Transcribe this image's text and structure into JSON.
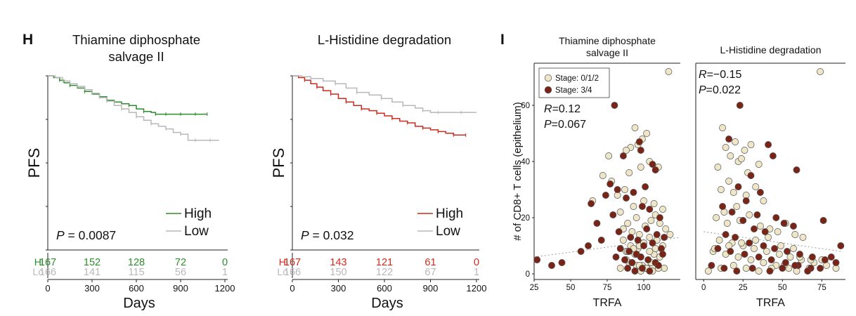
{
  "figure": {
    "panel_h_letter": "H",
    "panel_i_letter": "I"
  },
  "colors": {
    "high_green": "#2e8b2e",
    "high_red": "#cc2a1c",
    "low_gray": "#b8b8b8",
    "stage_low_fill": "#efe6c8",
    "stage_high_fill": "#7a2418",
    "strip_bg": "#ffffff",
    "axis": "#222222"
  },
  "chart_data": [
    {
      "id": "km-thiamine",
      "type": "line",
      "title": "Thiamine diphosphate salvage II",
      "title_lines": [
        "Thiamine diphosphate",
        "salvage II"
      ],
      "xlabel": "Days",
      "ylabel": "PFS",
      "xlim": [
        0,
        1200
      ],
      "ylim": [
        0,
        1
      ],
      "x_ticks": [
        "0",
        "300",
        "600",
        "900",
        "1200"
      ],
      "x_tick_values": [
        0,
        300,
        600,
        900,
        1200
      ],
      "p_label": "P",
      "p_value": " = 0.0087",
      "legend": [
        {
          "name": "High",
          "color": "#2e8b2e"
        },
        {
          "name": "Low",
          "color": "#b8b8b8"
        }
      ],
      "series": [
        {
          "name": "High",
          "color": "#2e8b2e",
          "end_x": 1080,
          "x": [
            0,
            40,
            80,
            110,
            150,
            200,
            250,
            300,
            350,
            400,
            450,
            500,
            550,
            600,
            650,
            700,
            730,
            760,
            800,
            850,
            900,
            950,
            1000,
            1050,
            1080
          ],
          "y": [
            1,
            0.99,
            0.975,
            0.96,
            0.945,
            0.93,
            0.91,
            0.895,
            0.88,
            0.86,
            0.85,
            0.84,
            0.83,
            0.81,
            0.795,
            0.79,
            0.78,
            0.78,
            0.78,
            0.78,
            0.78,
            0.78,
            0.78,
            0.78,
            0.78
          ]
        },
        {
          "name": "Low",
          "color": "#b8b8b8",
          "end_x": 1160,
          "x": [
            0,
            50,
            100,
            150,
            200,
            250,
            300,
            350,
            400,
            450,
            500,
            550,
            600,
            650,
            700,
            750,
            800,
            850,
            900,
            950,
            1000,
            1050,
            1100,
            1160
          ],
          "y": [
            1,
            0.99,
            0.97,
            0.955,
            0.94,
            0.92,
            0.9,
            0.875,
            0.855,
            0.83,
            0.81,
            0.79,
            0.765,
            0.745,
            0.725,
            0.71,
            0.695,
            0.675,
            0.665,
            0.63,
            0.63,
            0.63,
            0.63,
            0.63
          ]
        }
      ],
      "risk_table": {
        "rows": [
          {
            "label": "Hi",
            "color": "#2e8b2e",
            "values": [
              "167",
              "152",
              "128",
              "72",
              "0"
            ]
          },
          {
            "label": "Lo",
            "color": "#b8b8b8",
            "values": [
              "166",
              "141",
              "115",
              "56",
              "1"
            ]
          }
        ]
      }
    },
    {
      "id": "km-histidine",
      "type": "line",
      "title": "L-Histidine degradation",
      "title_lines": [
        "L-Histidine degradation"
      ],
      "xlabel": "Days",
      "ylabel": "PFS",
      "xlim": [
        0,
        1200
      ],
      "ylim": [
        0,
        1
      ],
      "x_ticks": [
        "0",
        "300",
        "600",
        "900",
        "1200"
      ],
      "x_tick_values": [
        0,
        300,
        600,
        900,
        1200
      ],
      "p_label": "P",
      "p_value": " = 0.032",
      "legend": [
        {
          "name": "High",
          "color": "#cc2a1c"
        },
        {
          "name": "Low",
          "color": "#b8b8b8"
        }
      ],
      "series": [
        {
          "name": "High",
          "color": "#cc2a1c",
          "end_x": 1130,
          "x": [
            0,
            40,
            80,
            120,
            160,
            200,
            250,
            300,
            350,
            400,
            450,
            500,
            550,
            600,
            650,
            700,
            750,
            800,
            850,
            900,
            950,
            1000,
            1050,
            1100,
            1130
          ],
          "y": [
            1,
            0.99,
            0.975,
            0.955,
            0.935,
            0.915,
            0.895,
            0.87,
            0.85,
            0.83,
            0.81,
            0.8,
            0.785,
            0.77,
            0.755,
            0.74,
            0.73,
            0.71,
            0.7,
            0.69,
            0.68,
            0.67,
            0.66,
            0.66,
            0.66
          ]
        },
        {
          "name": "Low",
          "color": "#b8b8b8",
          "end_x": 1200,
          "x": [
            0,
            60,
            120,
            200,
            280,
            350,
            420,
            500,
            580,
            650,
            720,
            800,
            850,
            900,
            950,
            1000,
            1100,
            1200
          ],
          "y": [
            1,
            0.995,
            0.985,
            0.97,
            0.955,
            0.93,
            0.905,
            0.89,
            0.87,
            0.85,
            0.83,
            0.815,
            0.8,
            0.79,
            0.79,
            0.79,
            0.79,
            0.79
          ]
        }
      ],
      "risk_table": {
        "rows": [
          {
            "label": "Hi",
            "color": "#cc2a1c",
            "values": [
              "167",
              "143",
              "121",
              "61",
              "0"
            ]
          },
          {
            "label": "Lo",
            "color": "#b8b8b8",
            "values": [
              "166",
              "150",
              "122",
              "67",
              "1"
            ]
          }
        ]
      }
    },
    {
      "id": "scatter-trfa",
      "type": "scatter",
      "ylabel": "# of CD8+ T cells (epithelium)",
      "ylim": [
        -2,
        75
      ],
      "y_ticks": [
        "0",
        "20",
        "40",
        "60"
      ],
      "y_tick_values": [
        0,
        20,
        40,
        60
      ],
      "legend": [
        {
          "name": "Stage: 0/1/2",
          "fill": "#efe6c8"
        },
        {
          "name": "Stage: 3/4",
          "fill": "#7a2418"
        }
      ],
      "facets": [
        {
          "strip": [
            "Thiamine diphosphate",
            "salvage II"
          ],
          "xlabel": "TRFA",
          "xlim": [
            25,
            125
          ],
          "x_ticks": [
            "25",
            "50",
            "75",
            "100"
          ],
          "x_tick_values": [
            25,
            50,
            75,
            100
          ],
          "stat_lines": [
            {
              "label": "R",
              "value": "=0.12"
            },
            {
              "label": "P",
              "value": "=0.067"
            }
          ],
          "trend": {
            "x": [
              25,
              125
            ],
            "y": [
              6,
              13
            ]
          },
          "points_low": {
            "x": [
              117,
              94,
              99,
              91,
              96,
              102,
              88,
              76,
              87,
              82,
              90,
              98,
              104,
              110,
              84,
              93,
              100,
              107,
              113,
              95,
              89,
              86,
              92,
              97,
              101,
              105,
              108,
              111,
              115,
              118,
              86,
              91,
              96,
              100,
              104,
              109,
              113,
              88,
              94,
              98,
              103,
              107,
              111,
              65,
              78,
              72,
              90,
              95,
              99,
              103,
              106,
              110,
              114,
              84,
              88,
              92,
              97,
              101,
              105,
              94,
              98,
              102,
              106,
              110,
              89,
              93,
              97,
              100,
              104,
              108
            ],
            "y": [
              72,
              52,
              48,
              45,
              46,
              50,
              44,
              42,
              30,
              28,
              36,
              38,
              40,
              38,
              22,
              24,
              26,
              25,
              23,
              20,
              18,
              16,
              15,
              14,
              17,
              19,
              21,
              18,
              16,
              14,
              12,
              10,
              9,
              11,
              13,
              12,
              10,
              8,
              7,
              6,
              5,
              7,
              6,
              26,
              33,
              35,
              4,
              3,
              3,
              2,
              2,
              3,
              2,
              2,
              5,
              4,
              3,
              2,
              4,
              1,
              1,
              2,
              1,
              2,
              8,
              9,
              10,
              11,
              8,
              9
            ]
          },
          "points_high": {
            "x": [
              80,
              97,
              98,
              86,
              106,
              108,
              77,
              82,
              74,
              64,
              93,
              101,
              88,
              99,
              104,
              111,
              79,
              68,
              57,
              44,
              27,
              37,
              83,
              91,
              96,
              102,
              109,
              114,
              84,
              90,
              95,
              100,
              106,
              112,
              81,
              87,
              92,
              98,
              103,
              108,
              113,
              89,
              94,
              99,
              104,
              110,
              62,
              71
            ],
            "y": [
              60,
              47,
              44,
              42,
              39,
              37,
              32,
              30,
              28,
              25,
              29,
              31,
              27,
              24,
              23,
              20,
              21,
              18,
              8,
              4,
              5,
              3,
              15,
              13,
              12,
              16,
              14,
              13,
              9,
              8,
              7,
              10,
              11,
              9,
              6,
              5,
              4,
              6,
              5,
              4,
              7,
              2,
              1,
              2,
              1,
              3,
              10,
              12
            ]
          }
        },
        {
          "strip": [
            "L-Histidine degradation"
          ],
          "xlabel": "TRFA",
          "xlim": [
            -5,
            90
          ],
          "x_ticks": [
            "0",
            "25",
            "50",
            "75"
          ],
          "x_tick_values": [
            0,
            25,
            50,
            75
          ],
          "stat_lines": [
            {
              "label": "R",
              "value": "=−0.15"
            },
            {
              "label": "P",
              "value": "=0.022"
            }
          ],
          "trend": {
            "x": [
              0,
              87
            ],
            "y": [
              15,
              8
            ]
          },
          "points_low": {
            "x": [
              74,
              12,
              20,
              26,
              30,
              17,
              14,
              22,
              9,
              28,
              35,
              24,
              16,
              11,
              19,
              27,
              33,
              38,
              21,
              13,
              8,
              15,
              23,
              29,
              36,
              42,
              47,
              52,
              58,
              63,
              10,
              18,
              25,
              32,
              40,
              48,
              55,
              62,
              70,
              78,
              84,
              6,
              14,
              22,
              30,
              38,
              46,
              54,
              61,
              68,
              3,
              11,
              19,
              27,
              35,
              43,
              51,
              59,
              67,
              75,
              7,
              16,
              24,
              33,
              41,
              49,
              57
            ],
            "y": [
              72,
              52,
              47,
              44,
              46,
              42,
              45,
              40,
              38,
              36,
              39,
              41,
              33,
              30,
              29,
              28,
              31,
              26,
              24,
              22,
              20,
              18,
              19,
              21,
              17,
              16,
              15,
              18,
              14,
              13,
              12,
              11,
              10,
              9,
              8,
              7,
              6,
              5,
              4,
              3,
              2,
              8,
              7,
              6,
              5,
              4,
              3,
              2,
              6,
              5,
              1,
              2,
              3,
              2,
              1,
              2,
              3,
              1,
              2,
              5,
              9,
              10,
              11,
              12,
              13,
              10,
              9
            ]
          },
          "points_high": {
            "x": [
              23,
              16,
              41,
              44,
              59,
              30,
              22,
              36,
              27,
              12,
              18,
              34,
              46,
              51,
              57,
              25,
              32,
              39,
              14,
              20,
              29,
              38,
              45,
              53,
              61,
              69,
              77,
              84,
              9,
              17,
              26,
              35,
              43,
              52,
              60,
              68,
              76,
              5,
              13,
              21,
              31,
              42,
              50,
              58,
              66,
              74,
              81,
              87
            ],
            "y": [
              60,
              48,
              46,
              42,
              37,
              35,
              31,
              29,
              26,
              24,
              22,
              21,
              20,
              18,
              17,
              19,
              16,
              15,
              14,
              13,
              11,
              10,
              9,
              8,
              7,
              6,
              5,
              4,
              9,
              8,
              7,
              6,
              5,
              4,
              3,
              2,
              19,
              3,
              2,
              1,
              2,
              1,
              2,
              3,
              1,
              2,
              6,
              10
            ]
          }
        }
      ]
    }
  ]
}
